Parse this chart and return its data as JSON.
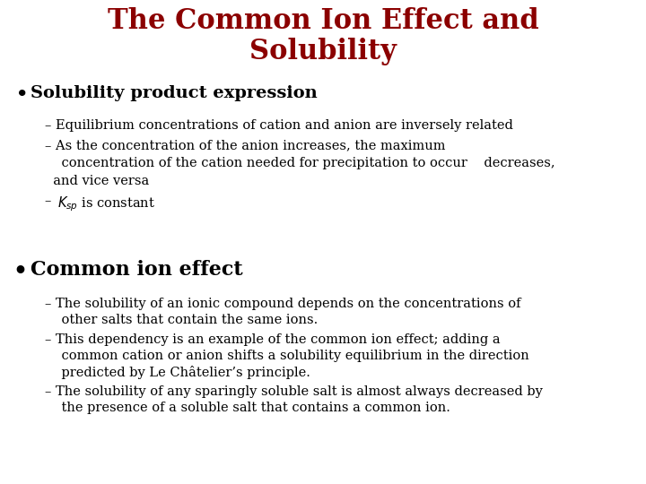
{
  "title_line1": "The Common Ion Effect and",
  "title_line2": "Solubility",
  "title_color": "#8B0000",
  "title_fontsize": 22,
  "title_fontweight": "bold",
  "bg_color": "#FFFFFF",
  "text_color": "#000000",
  "bullet1_text": "Solubility product expression",
  "bullet1_fontsize": 14,
  "bullet2_text": "Common ion effect",
  "bullet2_fontsize": 16,
  "sub_fontsize": 10.5,
  "sub1_1": "– Equilibrium concentrations of cation and anion are inversely related",
  "sub1_2a": "– As the concentration of the anion increases, the maximum",
  "sub1_2b": "    concentration of the cation needed for precipitation to occur    decreases,",
  "sub1_2c": "  and vice versa",
  "sub2_1a": "– The solubility of an ionic compound depends on the concentrations of",
  "sub2_1b": "    other salts that contain the same ions.",
  "sub2_2a": "– This dependency is an example of the common ion effect; adding a",
  "sub2_2b": "    common cation or anion shifts a solubility equilibrium in the direction",
  "sub2_2c": "    predicted by Le Châtelier’s principle.",
  "sub2_3a": "– The solubility of any sparingly soluble salt is almost always decreased by",
  "sub2_3b": "    the presence of a soluble salt that contains a common ion."
}
